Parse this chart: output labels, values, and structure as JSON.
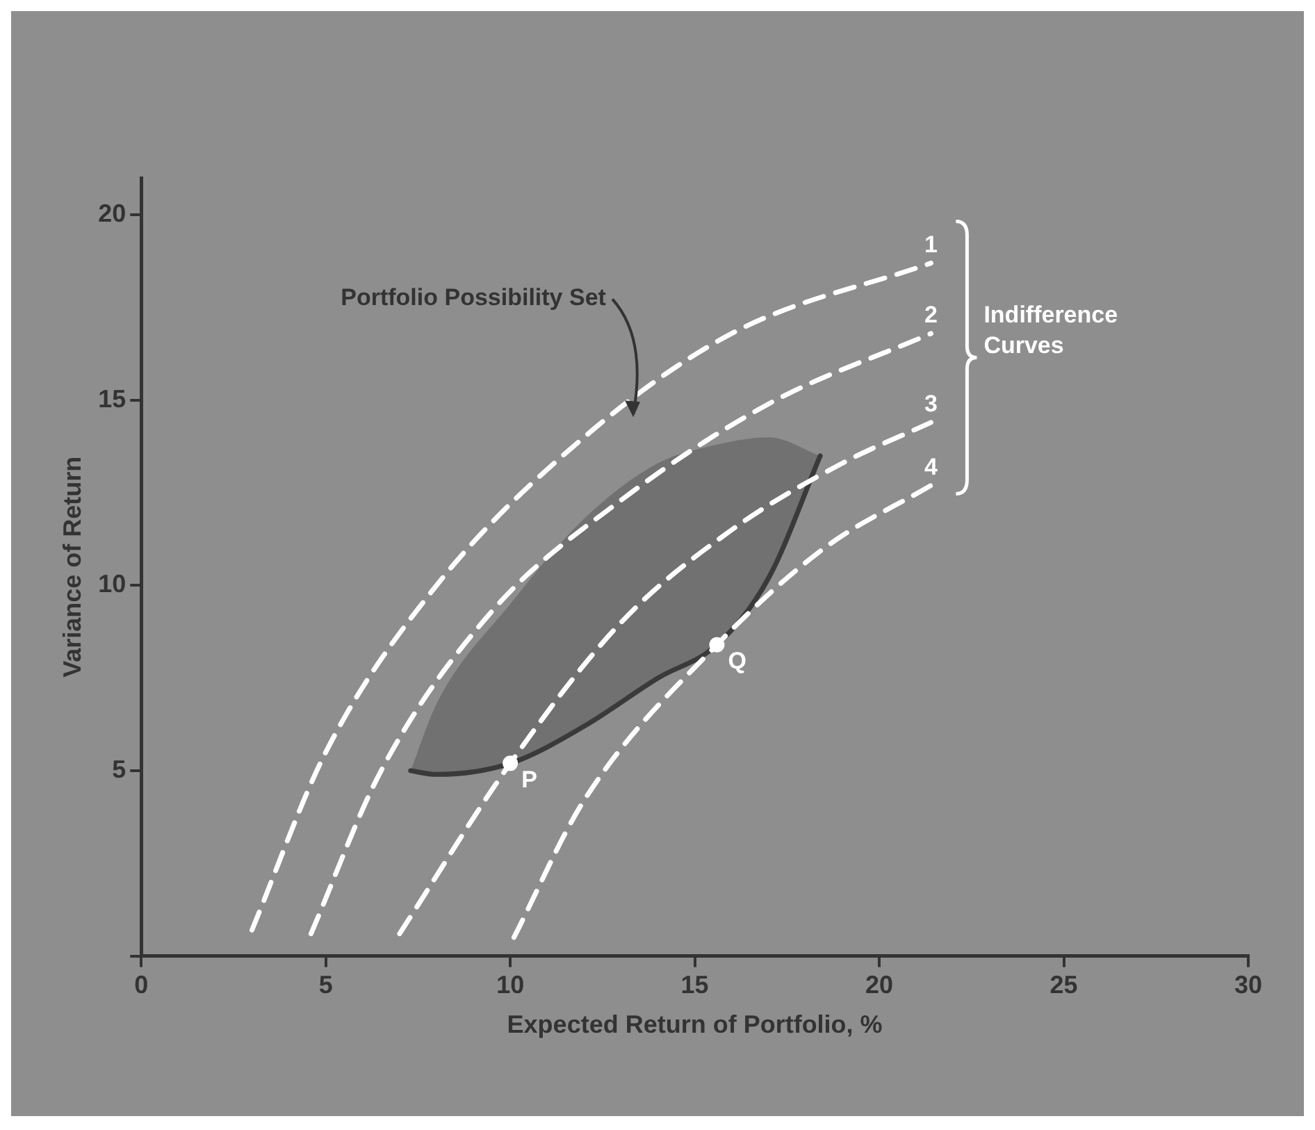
{
  "chart_data": {
    "type": "line",
    "xlabel": "Expected Return of Portfolio, %",
    "ylabel": "Variance of Return",
    "xlim": [
      0,
      30
    ],
    "ylim": [
      0,
      21
    ],
    "xticks": [
      0,
      5,
      10,
      15,
      20,
      25,
      30
    ],
    "yticks": [
      {
        "value": 0,
        "label": null
      },
      5,
      10,
      15,
      20
    ],
    "grid": false,
    "legend": false,
    "series": [
      {
        "name": "1",
        "color": "#ffffff",
        "line_style": "dashed",
        "marker": "none",
        "x": [
          3,
          5,
          8,
          12,
          16,
          21.4
        ],
        "values": [
          0.7,
          5.5,
          10,
          14,
          16.8,
          18.7
        ]
      },
      {
        "name": "2",
        "color": "#ffffff",
        "line_style": "dashed",
        "marker": "none",
        "x": [
          4.6,
          6.5,
          9.5,
          13,
          17,
          21.4
        ],
        "values": [
          0.6,
          5,
          9.3,
          12.3,
          14.9,
          16.8
        ]
      },
      {
        "name": "3",
        "color": "#ffffff",
        "line_style": "dashed",
        "marker": "none",
        "x": [
          7,
          10,
          13,
          16,
          19,
          21.4
        ],
        "values": [
          0.6,
          5.2,
          9,
          11.5,
          13.3,
          14.4
        ]
      },
      {
        "name": "4",
        "color": "#ffffff",
        "line_style": "dashed",
        "marker": "none",
        "x": [
          10.1,
          12,
          15.6,
          18.5,
          21.4
        ],
        "values": [
          0.5,
          4.2,
          8.4,
          11,
          12.7
        ]
      },
      {
        "color": "#3a3a3a",
        "line_style": "solid",
        "marker": "none",
        "x": [
          7.3,
          8,
          10,
          12,
          14,
          15.6,
          17,
          18.4
        ],
        "values": [
          5,
          4.9,
          5.2,
          6.2,
          7.5,
          8.4,
          10.2,
          13.5
        ],
        "lower": [
          5,
          4.9,
          5.2,
          6.2,
          7.5,
          8.4,
          10.2,
          13.5
        ],
        "upper": [
          5,
          6.8,
          9.5,
          11.8,
          13.3,
          13.8,
          14,
          13.5
        ]
      },
      {
        "name": "P",
        "type": "scatter",
        "color": "#ffffff",
        "marker": "circle",
        "x": [
          10
        ],
        "values": [
          5.2
        ]
      },
      {
        "name": "Q",
        "type": "scatter",
        "color": "#ffffff",
        "marker": "circle",
        "x": [
          15.6
        ],
        "values": [
          8.4
        ]
      }
    ],
    "annotations": [
      "Portfolio Possibility Set",
      "Indifference Curves"
    ]
  }
}
